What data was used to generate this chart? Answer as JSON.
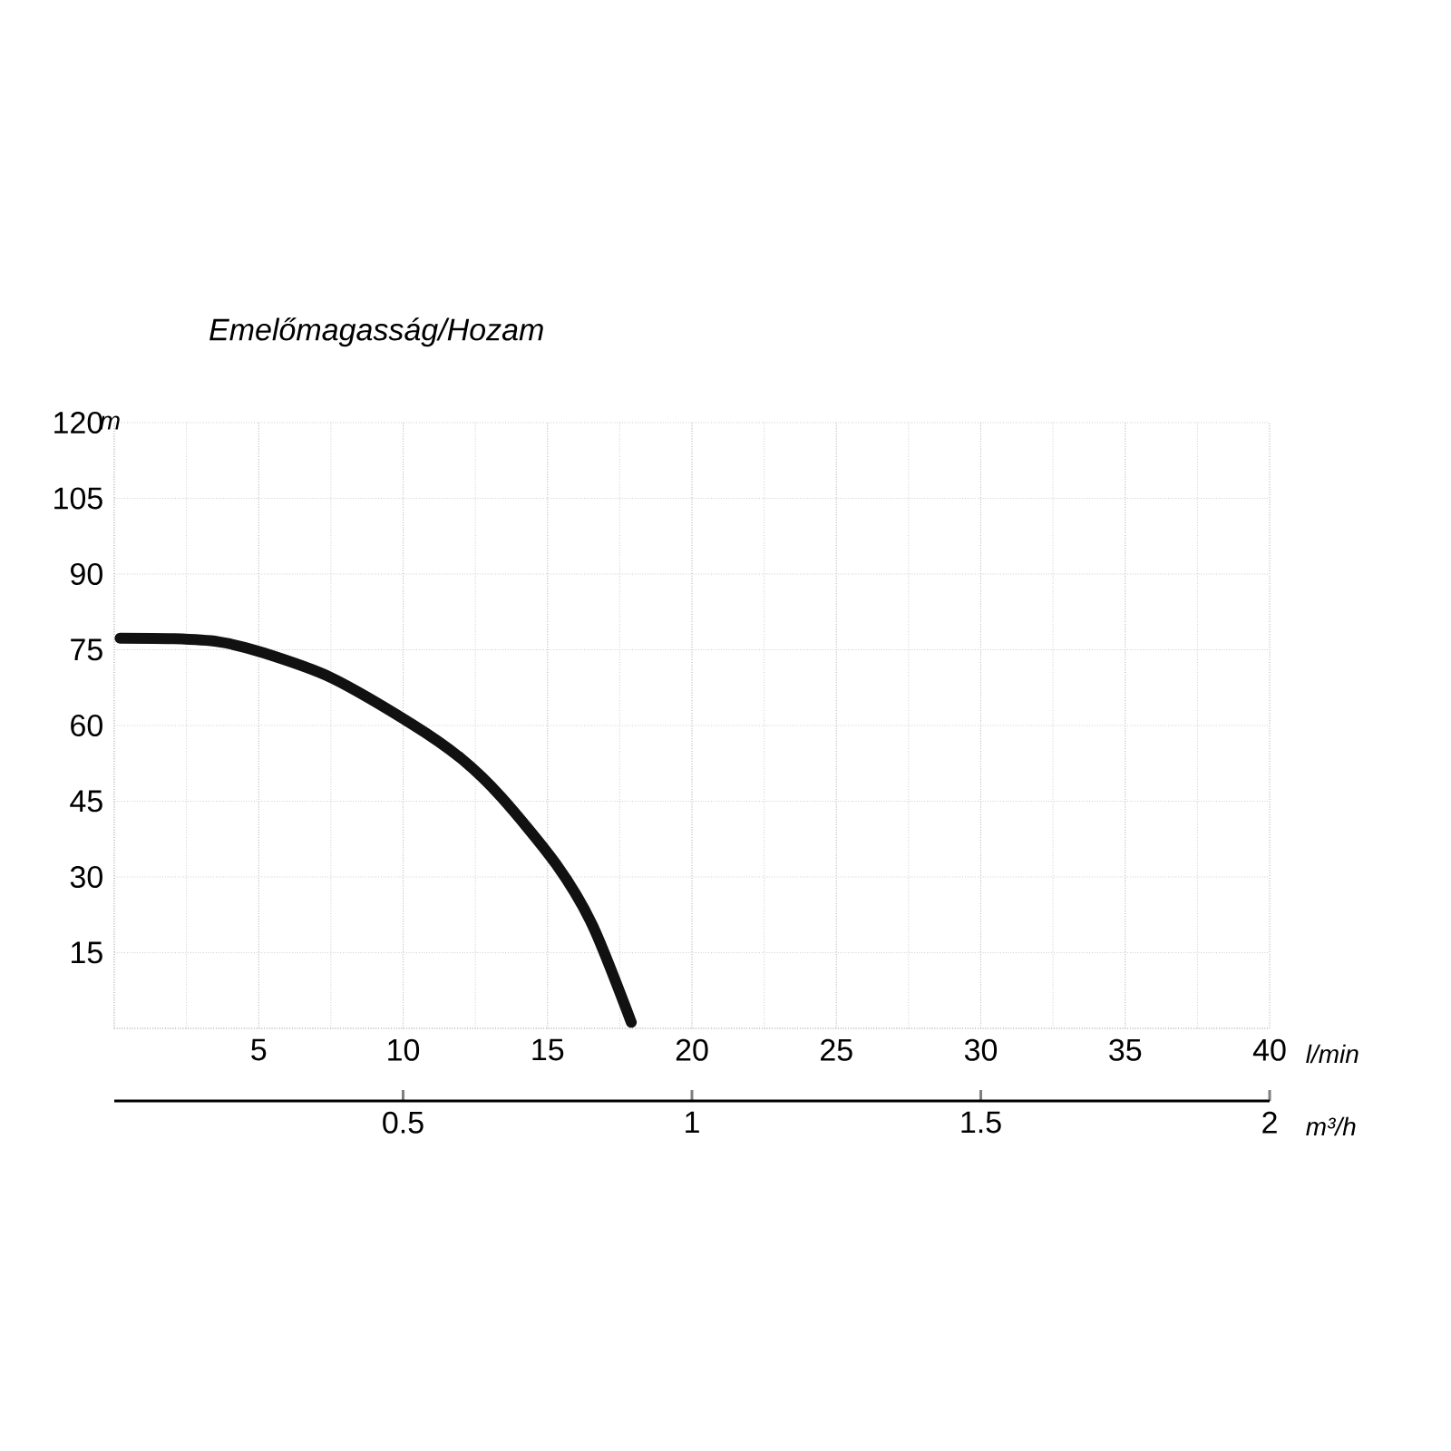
{
  "chart_data": {
    "type": "line",
    "title": "Emelőmagasság/Hozam",
    "xlabel": "l/min",
    "ylabel": "m",
    "x2label": "m³/h",
    "xlim": [
      0,
      40
    ],
    "xticks": [
      5,
      10,
      15,
      20,
      25,
      30,
      35,
      40
    ],
    "ylim": [
      0,
      120
    ],
    "yticks": [
      15,
      30,
      45,
      60,
      75,
      90,
      105,
      120
    ],
    "x2lim": [
      0,
      2
    ],
    "x2ticks": [
      0.5,
      1,
      1.5,
      2
    ],
    "series": [
      {
        "color": "#111111",
        "x": [
          0.2,
          2,
          3.6,
          5.1,
          7.5,
          10.3,
          12,
          13.4,
          15.3,
          16.55,
          17.9
        ],
        "values": [
          77.3,
          77.2,
          76.6,
          74.5,
          69.5,
          60.3,
          53.5,
          45.8,
          32.5,
          20.5,
          1.2
        ]
      }
    ],
    "grid": true
  }
}
